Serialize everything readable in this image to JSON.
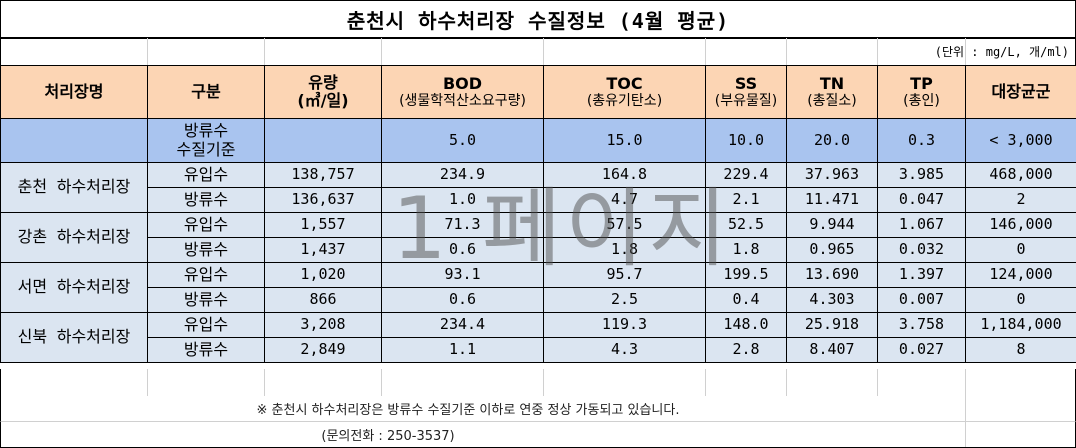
{
  "title": "춘천시 하수처리장 수질정보 (4월 평균)",
  "unit": "(단위 : mg/L, 개/ml)",
  "header": {
    "plant": "처리장명",
    "kind": "구분",
    "flow": "유량",
    "flow_unit": "(㎥/일)",
    "bod": "BOD",
    "bod_sub": "(생물학적산소요구량)",
    "toc": "TOC",
    "toc_sub": "(총유기탄소)",
    "ss": "SS",
    "ss_sub": "(부유물질)",
    "tn": "TN",
    "tn_sub": "(총질소)",
    "tp": "TP",
    "tp_sub": "(총인)",
    "coli": "대장균군"
  },
  "standard": {
    "kind_line1": "방류수",
    "kind_line2": "수질기준",
    "flow": "",
    "bod": "5.0",
    "toc": "15.0",
    "ss": "10.0",
    "tn": "20.0",
    "tp": "0.3",
    "coli": "< 3,000"
  },
  "plants": [
    {
      "name": "춘천 하수처리장",
      "rows": [
        {
          "kind": "유입수",
          "flow": "138,757",
          "bod": "234.9",
          "toc": "164.8",
          "ss": "229.4",
          "tn": "37.963",
          "tp": "3.985",
          "coli": "468,000"
        },
        {
          "kind": "방류수",
          "flow": "136,637",
          "bod": "1.0",
          "toc": "4.7",
          "ss": "2.1",
          "tn": "11.471",
          "tp": "0.047",
          "coli": "2"
        }
      ]
    },
    {
      "name": "강촌 하수처리장",
      "rows": [
        {
          "kind": "유입수",
          "flow": "1,557",
          "bod": "71.3",
          "toc": "57.5",
          "ss": "52.5",
          "tn": "9.944",
          "tp": "1.067",
          "coli": "146,000"
        },
        {
          "kind": "방류수",
          "flow": "1,437",
          "bod": "0.6",
          "toc": "1.8",
          "ss": "1.8",
          "tn": "0.965",
          "tp": "0.032",
          "coli": "0"
        }
      ]
    },
    {
      "name": "서면 하수처리장",
      "rows": [
        {
          "kind": "유입수",
          "flow": "1,020",
          "bod": "93.1",
          "toc": "95.7",
          "ss": "199.5",
          "tn": "13.690",
          "tp": "1.397",
          "coli": "124,000"
        },
        {
          "kind": "방류수",
          "flow": "866",
          "bod": "0.6",
          "toc": "2.5",
          "ss": "0.4",
          "tn": "4.303",
          "tp": "0.007",
          "coli": "0"
        }
      ]
    },
    {
      "name": "신북 하수처리장",
      "rows": [
        {
          "kind": "유입수",
          "flow": "3,208",
          "bod": "234.4",
          "toc": "119.3",
          "ss": "148.0",
          "tn": "25.918",
          "tp": "3.758",
          "coli": "1,184,000"
        },
        {
          "kind": "방류수",
          "flow": "2,849",
          "bod": "1.1",
          "toc": "4.3",
          "ss": "2.8",
          "tn": "8.407",
          "tp": "0.027",
          "coli": "8"
        }
      ]
    }
  ],
  "footer": {
    "note": "※ 춘천시 하수처리장은 방류수 수질기준 이하로 연중 정상 가동되고 있습니다.",
    "contact": "(문의전화 : 250-3537)"
  },
  "watermark": "1 페이지",
  "colors": {
    "header_bg": "#fcd5b4",
    "standard_bg": "#a9c4ef",
    "body_bg": "#dbe5f1"
  }
}
